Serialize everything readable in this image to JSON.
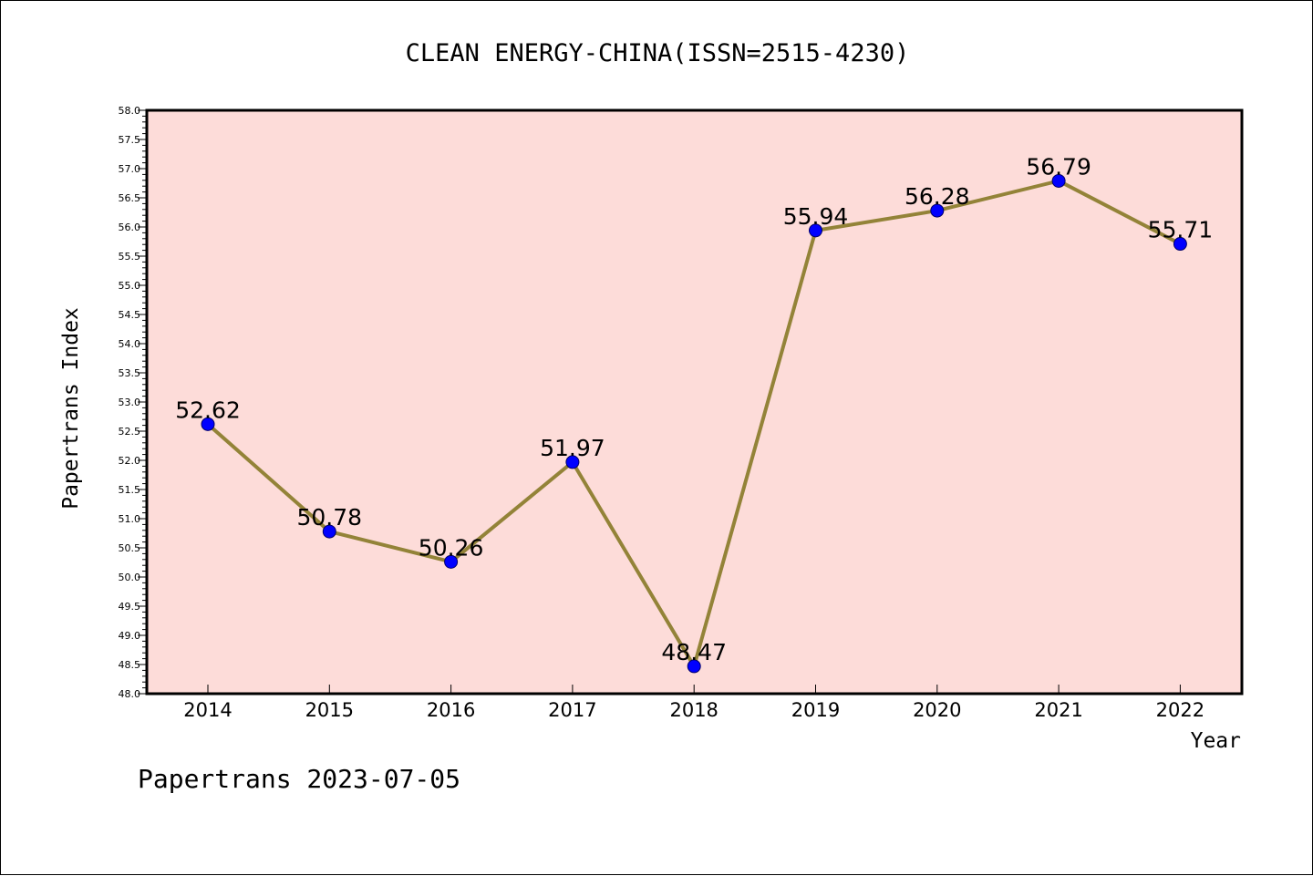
{
  "chart_data": {
    "type": "line",
    "title": "CLEAN ENERGY-CHINA(ISSN=2515-4230)",
    "xlabel": "Year",
    "ylabel": "Papertrans Index",
    "categories": [
      "2014",
      "2015",
      "2016",
      "2017",
      "2018",
      "2019",
      "2020",
      "2021",
      "2022"
    ],
    "series": [
      {
        "values": [
          52.62,
          50.78,
          50.26,
          51.97,
          48.47,
          55.94,
          56.28,
          56.79,
          55.71
        ],
        "data_labels": [
          "52.62",
          "50.78",
          "50.26",
          "51.97",
          "48.47",
          "55.94",
          "56.28",
          "56.79",
          "55.71"
        ]
      }
    ],
    "ylim": [
      48.0,
      58.0
    ],
    "y_major_ticks": [
      "48.0",
      "48.5",
      "49.0",
      "49.5",
      "50.0",
      "50.5",
      "51.0",
      "51.5",
      "52.0",
      "52.5",
      "53.0",
      "53.5",
      "54.0",
      "54.5",
      "55.0",
      "55.5",
      "56.0",
      "56.5",
      "57.0",
      "57.5",
      "58.0"
    ],
    "grid": false,
    "colors": {
      "plot_background": "#fddcd9",
      "line": "#938338",
      "marker": "#0000ff"
    }
  },
  "footer": "Papertrans 2023-07-05"
}
